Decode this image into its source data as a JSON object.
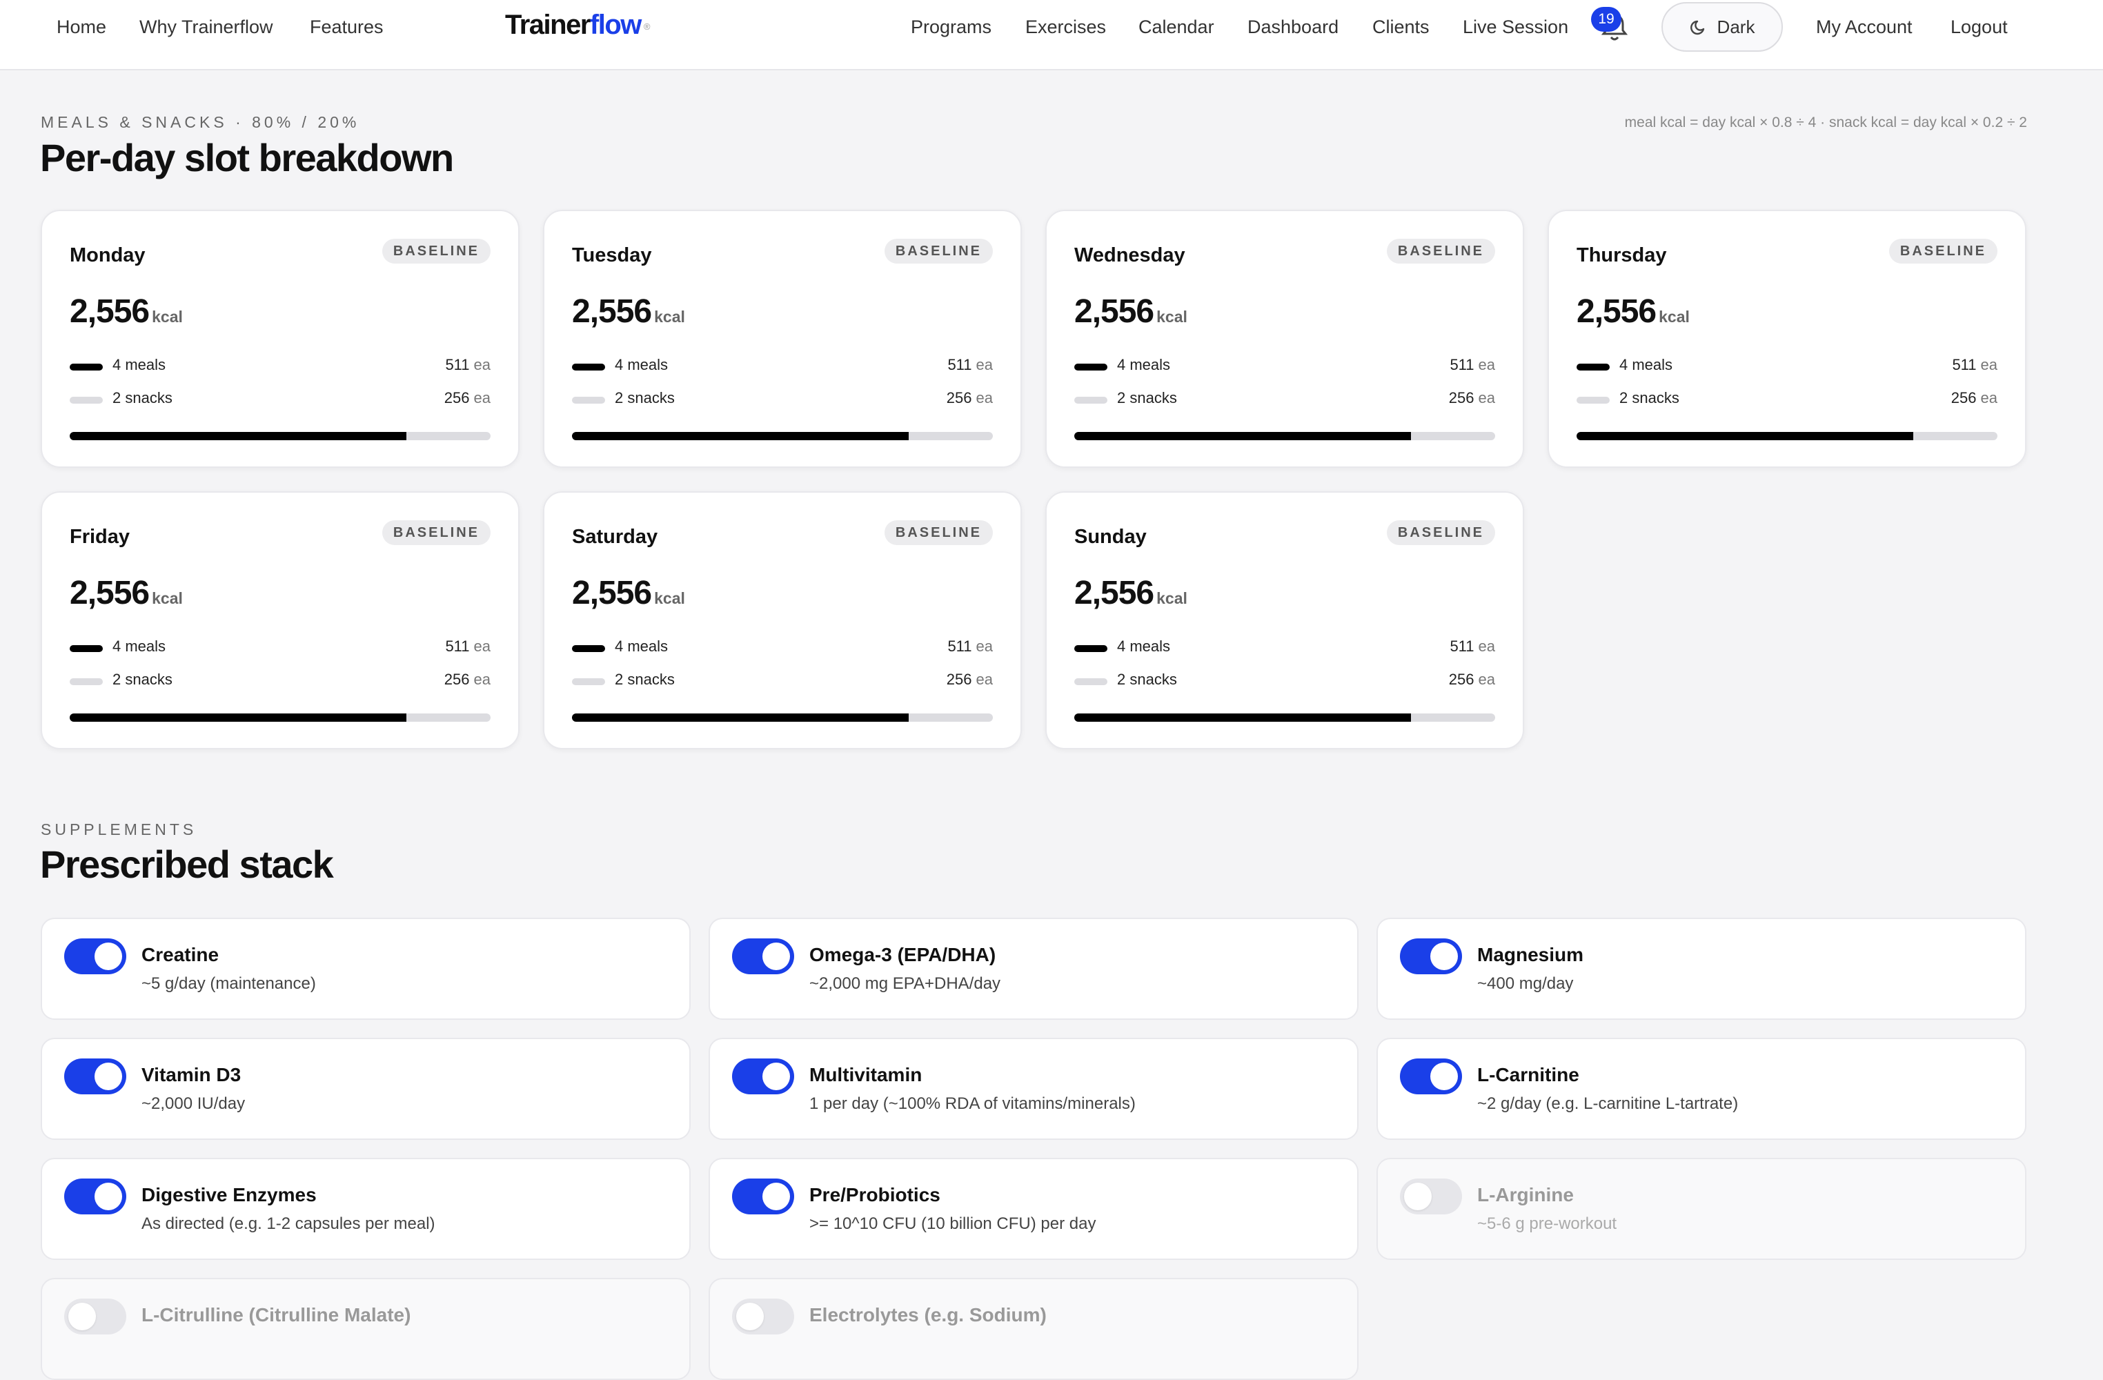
{
  "nav": {
    "left_links": [
      "Home",
      "Why Trainerflow",
      "Features"
    ],
    "brand": {
      "part1": "Trainer",
      "part2": "flow",
      "mark": "®"
    },
    "right_links": [
      "Programs",
      "Exercises",
      "Calendar",
      "Dashboard",
      "Clients",
      "Live Session"
    ],
    "notifications": {
      "icon": "bell-icon",
      "count": "19"
    },
    "theme_toggle": {
      "icon": "moon-icon",
      "label": "Dark"
    },
    "account_links": [
      "My Account",
      "Logout"
    ]
  },
  "slots": {
    "eyebrow": "MEALS & SNACKS · 80% / 20%",
    "title": "Per-day slot breakdown",
    "formula": "meal kcal = day kcal × 0.8 ÷ 4 · snack kcal = day kcal × 0.2 ÷ 2",
    "days": [
      {
        "name": "Monday",
        "badge": "BASELINE",
        "kcal": "2,556",
        "unit": "kcal",
        "meals_label": "4 meals",
        "meals_value": "511",
        "snacks_label": "2 snacks",
        "snacks_value": "256",
        "per": "ea",
        "meal_share": 0.8
      },
      {
        "name": "Tuesday",
        "badge": "BASELINE",
        "kcal": "2,556",
        "unit": "kcal",
        "meals_label": "4 meals",
        "meals_value": "511",
        "snacks_label": "2 snacks",
        "snacks_value": "256",
        "per": "ea",
        "meal_share": 0.8
      },
      {
        "name": "Wednesday",
        "badge": "BASELINE",
        "kcal": "2,556",
        "unit": "kcal",
        "meals_label": "4 meals",
        "meals_value": "511",
        "snacks_label": "2 snacks",
        "snacks_value": "256",
        "per": "ea",
        "meal_share": 0.8
      },
      {
        "name": "Thursday",
        "badge": "BASELINE",
        "kcal": "2,556",
        "unit": "kcal",
        "meals_label": "4 meals",
        "meals_value": "511",
        "snacks_label": "2 snacks",
        "snacks_value": "256",
        "per": "ea",
        "meal_share": 0.8
      },
      {
        "name": "Friday",
        "badge": "BASELINE",
        "kcal": "2,556",
        "unit": "kcal",
        "meals_label": "4 meals",
        "meals_value": "511",
        "snacks_label": "2 snacks",
        "snacks_value": "256",
        "per": "ea",
        "meal_share": 0.8
      },
      {
        "name": "Saturday",
        "badge": "BASELINE",
        "kcal": "2,556",
        "unit": "kcal",
        "meals_label": "4 meals",
        "meals_value": "511",
        "snacks_label": "2 snacks",
        "snacks_value": "256",
        "per": "ea",
        "meal_share": 0.8
      },
      {
        "name": "Sunday",
        "badge": "BASELINE",
        "kcal": "2,556",
        "unit": "kcal",
        "meals_label": "4 meals",
        "meals_value": "511",
        "snacks_label": "2 snacks",
        "snacks_value": "256",
        "per": "ea",
        "meal_share": 0.8
      }
    ]
  },
  "supplements": {
    "eyebrow": "SUPPLEMENTS",
    "title": "Prescribed stack",
    "items": [
      {
        "name": "Creatine",
        "dose": "~5 g/day (maintenance)",
        "enabled": true
      },
      {
        "name": "Omega-3 (EPA/DHA)",
        "dose": "~2,000 mg EPA+DHA/day",
        "enabled": true
      },
      {
        "name": "Magnesium",
        "dose": "~400 mg/day",
        "enabled": true
      },
      {
        "name": "Vitamin D3",
        "dose": "~2,000 IU/day",
        "enabled": true
      },
      {
        "name": "Multivitamin",
        "dose": "1 per day (~100% RDA of vitamins/minerals)",
        "enabled": true
      },
      {
        "name": "L-Carnitine",
        "dose": "~2 g/day (e.g. L-carnitine L-tartrate)",
        "enabled": true
      },
      {
        "name": "Digestive Enzymes",
        "dose": "As directed (e.g. 1-2 capsules per meal)",
        "enabled": true
      },
      {
        "name": "Pre/Probiotics",
        "dose": ">= 10^10 CFU (10 billion CFU) per day",
        "enabled": true
      },
      {
        "name": "L-Arginine",
        "dose": "~5-6 g pre-workout",
        "enabled": false
      },
      {
        "name": "L-Citrulline (Citrulline Malate)",
        "dose": "",
        "enabled": false
      },
      {
        "name": "Electrolytes (e.g. Sodium)",
        "dose": "",
        "enabled": false
      }
    ]
  },
  "colors": {
    "accent": "#1a3fe8",
    "background": "#f4f4f6",
    "meal_bar": "#000000",
    "snack_bar": "#dcdce0"
  }
}
